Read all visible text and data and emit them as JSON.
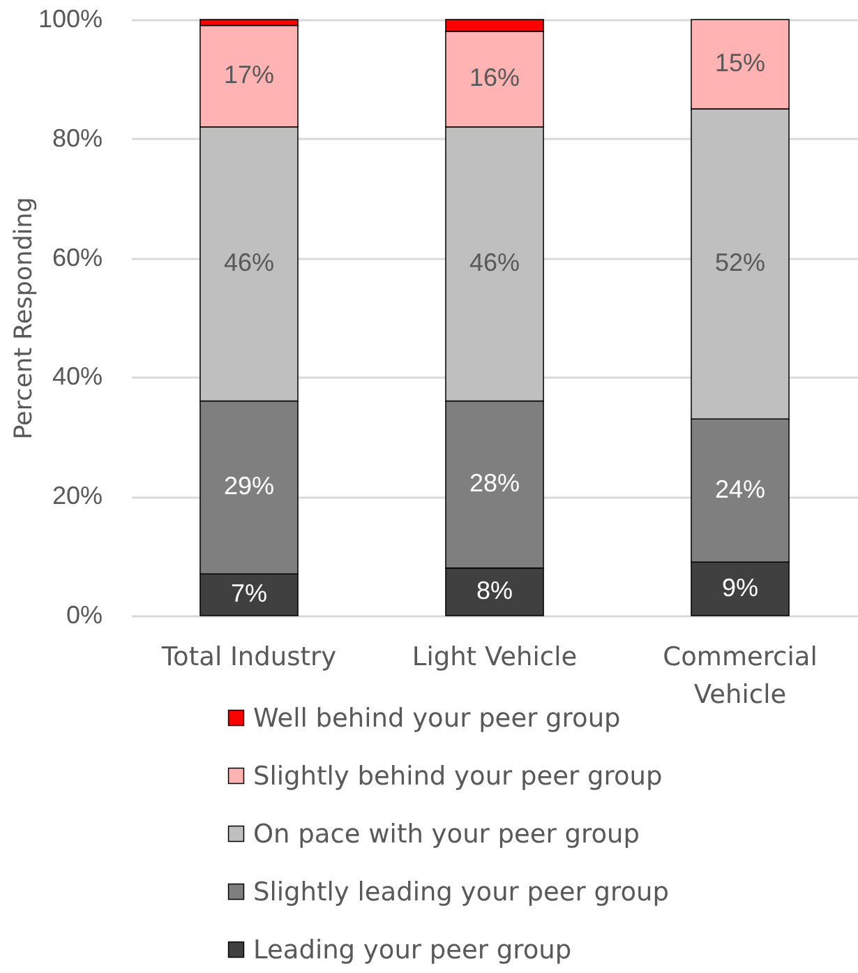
{
  "chart_data": {
    "type": "bar",
    "stacked": true,
    "ylabel": "Percent Responding",
    "categories": [
      "Total Industry",
      "Light Vehicle",
      "Commercial Vehicle"
    ],
    "series": [
      {
        "name": "Leading your peer group",
        "color": "#404040",
        "values": [
          7,
          8,
          9
        ],
        "value_labels": [
          "7%",
          "8%",
          "9%"
        ]
      },
      {
        "name": "Slightly leading your peer group",
        "color": "#7f7f7f",
        "values": [
          29,
          28,
          24
        ],
        "value_labels": [
          "29%",
          "28%",
          "24%"
        ]
      },
      {
        "name": "On pace with your peer group",
        "color": "#bfbfbf",
        "values": [
          46,
          46,
          52
        ],
        "value_labels": [
          "46%",
          "46%",
          "52%"
        ]
      },
      {
        "name": "Slightly behind your peer group",
        "color": "#ffb3b3",
        "values": [
          17,
          16,
          15
        ],
        "value_labels": [
          "17%",
          "16%",
          "15%"
        ]
      },
      {
        "name": "Well behind your peer group",
        "color": "#ff0000",
        "values": [
          1,
          2,
          null
        ]
      }
    ],
    "ylim": [
      0,
      100
    ],
    "yticks": [
      {
        "value": 0,
        "label": "0%"
      },
      {
        "value": 20,
        "label": "20%"
      },
      {
        "value": 40,
        "label": "40%"
      },
      {
        "value": 60,
        "label": "60%"
      },
      {
        "value": 80,
        "label": "80%"
      },
      {
        "value": 100,
        "label": "100%"
      }
    ],
    "grid": "y",
    "legend": "bottom"
  }
}
